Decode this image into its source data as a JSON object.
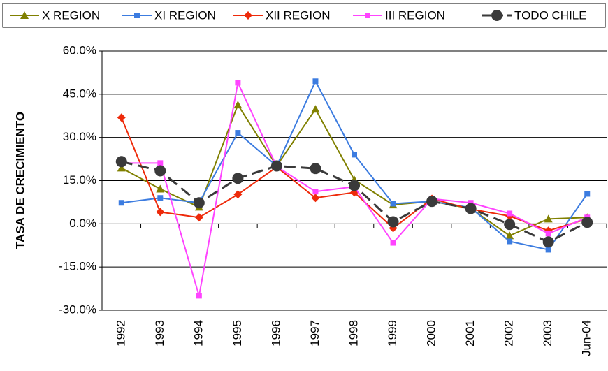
{
  "chart_data": {
    "type": "line",
    "y_label": "TASA DE CRECIMIENTO",
    "categories": [
      "1992",
      "1993",
      "1994",
      "1995",
      "1996",
      "1997",
      "1998",
      "1999",
      "2000",
      "2001",
      "2002",
      "2003",
      "Jun-04"
    ],
    "series": [
      {
        "name": "X REGION",
        "color": "#808000",
        "marker": "triangle",
        "values": [
          19.4,
          12.1,
          5.8,
          41.3,
          20.1,
          39.8,
          15.3,
          6.6,
          7.8,
          5.3,
          -4.1,
          1.7,
          2.2
        ]
      },
      {
        "name": "XI REGION",
        "color": "#3c7ce0",
        "marker": "square",
        "values": [
          7.3,
          9.0,
          7.3,
          31.6,
          20.1,
          49.5,
          24.0,
          7.0,
          7.8,
          5.6,
          -6.1,
          -9.0,
          10.4
        ]
      },
      {
        "name": "XII REGION",
        "color": "#ee2a0a",
        "marker": "diamond",
        "values": [
          36.9,
          4.1,
          2.2,
          10.2,
          19.7,
          9.0,
          10.9,
          -1.5,
          8.7,
          5.1,
          2.7,
          -2.4,
          1.7
        ]
      },
      {
        "name": "III REGION",
        "color": "#ff44ff",
        "marker": "square",
        "values": [
          21.1,
          21.1,
          -25.0,
          49.0,
          19.9,
          11.2,
          12.9,
          -6.6,
          8.7,
          7.3,
          3.6,
          -3.4,
          2.2
        ]
      },
      {
        "name": "TODO CHILE",
        "color": "#3a3a3a",
        "marker": "circle",
        "dashed": true,
        "values": [
          21.6,
          18.4,
          7.3,
          15.8,
          20.1,
          19.2,
          13.3,
          0.7,
          7.8,
          5.3,
          -0.2,
          -6.3,
          0.5
        ]
      }
    ],
    "ylim": [
      -30,
      60
    ],
    "yticks": [
      {
        "value": -30,
        "label": "-30.0%"
      },
      {
        "value": -15,
        "label": "-15.0%"
      },
      {
        "value": 0,
        "label": "0.0%"
      },
      {
        "value": 15,
        "label": "15.0%"
      },
      {
        "value": 30,
        "label": "30.0%"
      },
      {
        "value": 45,
        "label": "45.0%"
      },
      {
        "value": 60,
        "label": "60.0%"
      }
    ],
    "grid": true
  }
}
